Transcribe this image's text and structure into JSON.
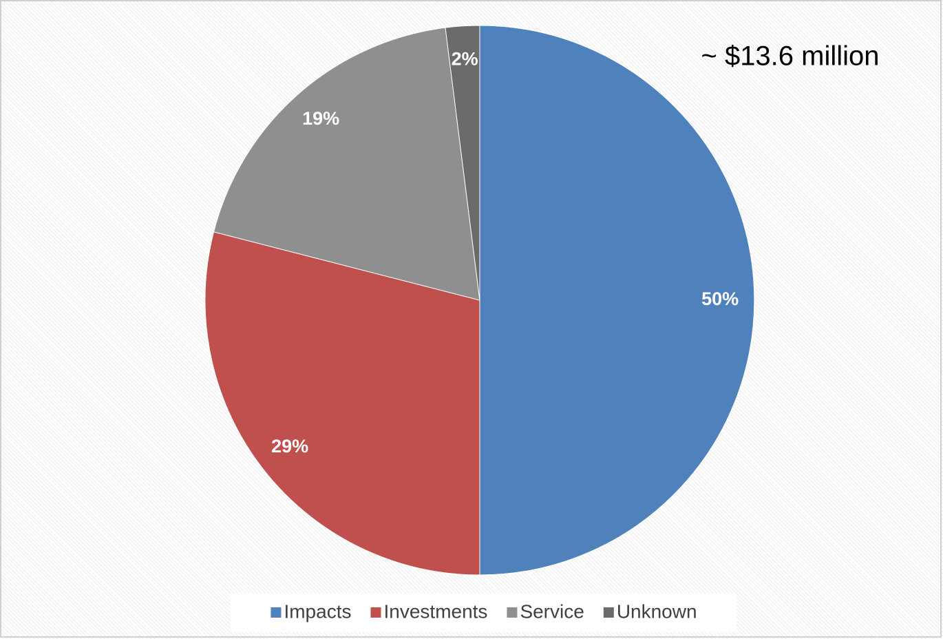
{
  "chart_data": {
    "type": "pie",
    "annotation": "~ $13.6 million",
    "categories": [
      "Impacts",
      "Investments",
      "Service",
      "Unknown"
    ],
    "values": [
      50,
      29,
      19,
      2
    ],
    "value_labels": [
      "50%",
      "29%",
      "19%",
      "2%"
    ],
    "colors": [
      "#4f81bd",
      "#c0504d",
      "#8f8f8f",
      "#6b6b6b"
    ],
    "legend": "bottom"
  }
}
